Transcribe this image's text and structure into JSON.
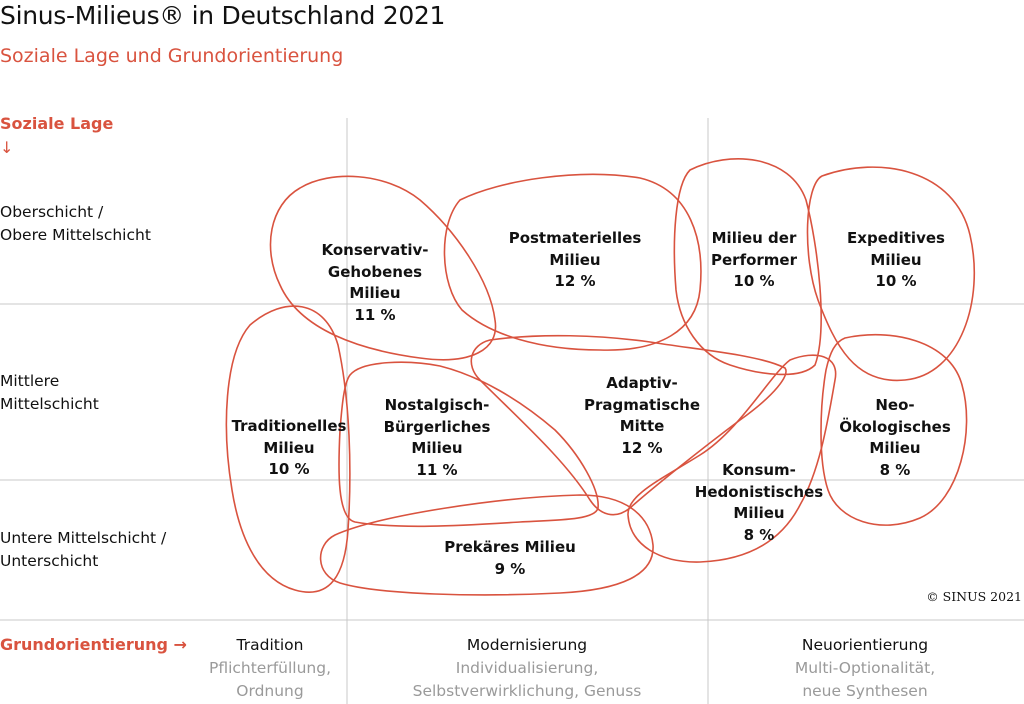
{
  "title": "Sinus-Milieus® in Deutschland 2021",
  "subtitle": "Soziale Lage und Grundorientierung",
  "y_axis": {
    "title": "Soziale Lage",
    "arrow": "↓",
    "levels": [
      {
        "line1": "Oberschicht /",
        "line2": "Obere Mittelschicht"
      },
      {
        "line1": "Mittlere",
        "line2": "Mittelschicht"
      },
      {
        "line1": "Untere Mittelschicht /",
        "line2": "Unterschicht"
      }
    ]
  },
  "x_axis": {
    "title": "Grundorientierung →",
    "columns": [
      {
        "label": "Tradition",
        "sub1": "Pflichterfüllung,",
        "sub2": "Ordnung"
      },
      {
        "label": "Modernisierung",
        "sub1": "Individualisierung,",
        "sub2": "Selbstverwirklichung, Genuss"
      },
      {
        "label": "Neuorientierung",
        "sub1": "Multi-Optionalität,",
        "sub2": "neue Synthesen"
      }
    ]
  },
  "colors": {
    "accent": "#d9533f",
    "grid": "#c9c9c9",
    "text": "#111111",
    "subtext": "#9a9a9a"
  },
  "milieus": [
    {
      "id": "konservativ",
      "lines": [
        "Konservativ-",
        "Gehobenes",
        "Milieu"
      ],
      "share": "11 %"
    },
    {
      "id": "postmateriell",
      "lines": [
        "Postmaterielles",
        "Milieu"
      ],
      "share": "12 %"
    },
    {
      "id": "performer",
      "lines": [
        "Milieu der",
        "Performer"
      ],
      "share": "10 %"
    },
    {
      "id": "expeditiv",
      "lines": [
        "Expeditives",
        "Milieu"
      ],
      "share": "10 %"
    },
    {
      "id": "traditionell",
      "lines": [
        "Traditionelles",
        "Milieu"
      ],
      "share": "10 %"
    },
    {
      "id": "nostalgisch",
      "lines": [
        "Nostalgisch-",
        "Bürgerliches",
        "Milieu"
      ],
      "share": "11 %"
    },
    {
      "id": "adaptiv",
      "lines": [
        "Adaptiv-",
        "Pragmatische",
        "Mitte"
      ],
      "share": "12 %"
    },
    {
      "id": "neooeko",
      "lines": [
        "Neo-",
        "Ökologisches",
        "Milieu"
      ],
      "share": "8 %"
    },
    {
      "id": "konsum",
      "lines": [
        "Konsum-",
        "Hedonistisches",
        "Milieu"
      ],
      "share": "8 %"
    },
    {
      "id": "prekaer",
      "lines": [
        "Prekäres Milieu"
      ],
      "share": "9 %"
    }
  ],
  "copyright": "© SINUS 2021"
}
